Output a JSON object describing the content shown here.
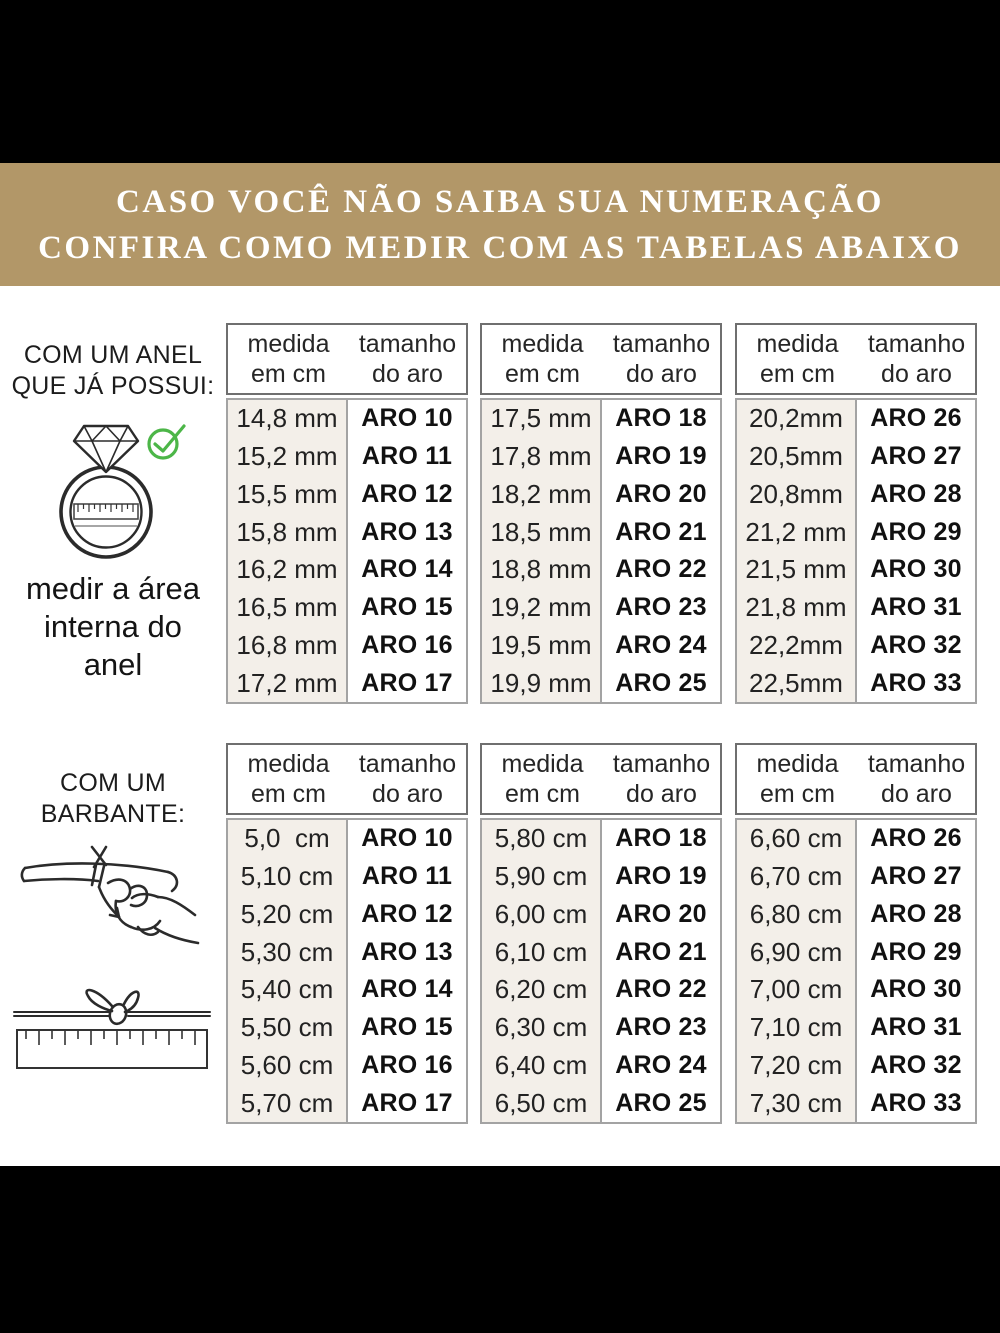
{
  "colors": {
    "banner_bg": "#b29768",
    "beige_column": "#f3efe9",
    "check_green": "#4cb648",
    "letterbox": "#000000",
    "text": "#1f1f1f"
  },
  "banner": {
    "line1": "CASO VOCÊ NÃO SAIBA SUA NUMERAÇÃO",
    "line2": "CONFIRA COMO MEDIR COM AS TABELAS ABAIXO"
  },
  "ring_section": {
    "heading_line1": "COM UM ANEL",
    "heading_line2": "QUE JÁ POSSUI:",
    "caption_line1": "medir a área",
    "caption_line2": "interna do",
    "caption_line3": "anel",
    "icons": [
      "ring-icon",
      "check-icon"
    ]
  },
  "barbante_section": {
    "heading_line1": "COM UM",
    "heading_line2": "BARBANTE:",
    "icons": [
      "hand-string-icon",
      "string-knot-ruler-icon"
    ]
  },
  "table_header": {
    "col1_line1": "medida",
    "col1_line2": "em cm",
    "col2_line1": "tamanho",
    "col2_line2": "do aro"
  },
  "tables": [
    {
      "rows": [
        [
          "14,8 mm",
          "ARO 10"
        ],
        [
          "15,2 mm",
          "ARO 11"
        ],
        [
          "15,5 mm",
          "ARO 12"
        ],
        [
          "15,8 mm",
          "ARO 13"
        ],
        [
          "16,2 mm",
          "ARO 14"
        ],
        [
          "16,5 mm",
          "ARO 15"
        ],
        [
          "16,8 mm",
          "ARO 16"
        ],
        [
          "17,2 mm",
          "ARO 17"
        ]
      ]
    },
    {
      "rows": [
        [
          "17,5 mm",
          "ARO 18"
        ],
        [
          "17,8 mm",
          "ARO 19"
        ],
        [
          "18,2 mm",
          "ARO 20"
        ],
        [
          "18,5 mm",
          "ARO 21"
        ],
        [
          "18,8 mm",
          "ARO 22"
        ],
        [
          "19,2 mm",
          "ARO 23"
        ],
        [
          "19,5 mm",
          "ARO 24"
        ],
        [
          "19,9 mm",
          "ARO 25"
        ]
      ]
    },
    {
      "rows": [
        [
          "20,2mm",
          "ARO 26"
        ],
        [
          "20,5mm",
          "ARO 27"
        ],
        [
          "20,8mm",
          "ARO 28"
        ],
        [
          "21,2 mm",
          "ARO 29"
        ],
        [
          "21,5 mm",
          "ARO 30"
        ],
        [
          "21,8 mm",
          "ARO 31"
        ],
        [
          "22,2mm",
          "ARO 32"
        ],
        [
          "22,5mm",
          "ARO 33"
        ]
      ]
    },
    {
      "rows": [
        [
          "5,0  cm",
          "ARO 10"
        ],
        [
          "5,10 cm",
          "ARO 11"
        ],
        [
          "5,20 cm",
          "ARO 12"
        ],
        [
          "5,30 cm",
          "ARO 13"
        ],
        [
          "5,40 cm",
          "ARO 14"
        ],
        [
          "5,50 cm",
          "ARO 15"
        ],
        [
          "5,60 cm",
          "ARO 16"
        ],
        [
          "5,70 cm",
          "ARO 17"
        ]
      ]
    },
    {
      "rows": [
        [
          "5,80 cm",
          "ARO 18"
        ],
        [
          "5,90 cm",
          "ARO 19"
        ],
        [
          "6,00 cm",
          "ARO 20"
        ],
        [
          "6,10 cm",
          "ARO 21"
        ],
        [
          "6,20 cm",
          "ARO 22"
        ],
        [
          "6,30 cm",
          "ARO 23"
        ],
        [
          "6,40 cm",
          "ARO 24"
        ],
        [
          "6,50 cm",
          "ARO 25"
        ]
      ]
    },
    {
      "rows": [
        [
          "6,60 cm",
          "ARO 26"
        ],
        [
          "6,70 cm",
          "ARO 27"
        ],
        [
          "6,80 cm",
          "ARO 28"
        ],
        [
          "6,90 cm",
          "ARO 29"
        ],
        [
          "7,00 cm",
          "ARO 30"
        ],
        [
          "7,10 cm",
          "ARO 31"
        ],
        [
          "7,20 cm",
          "ARO 32"
        ],
        [
          "7,30 cm",
          "ARO 33"
        ]
      ]
    }
  ]
}
